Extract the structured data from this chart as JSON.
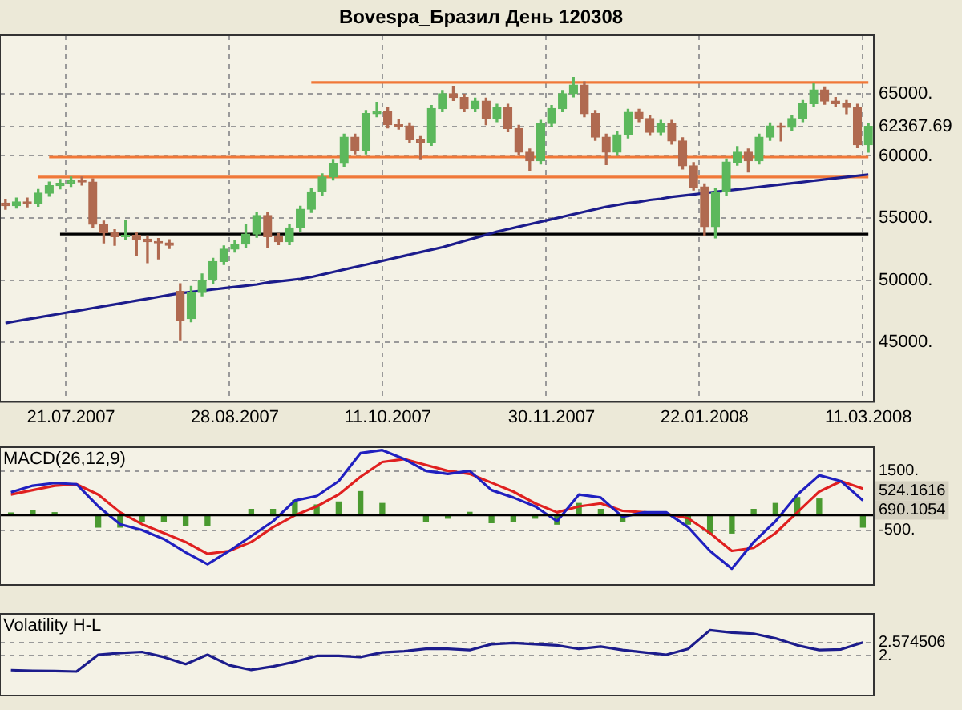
{
  "chart_data": [
    {
      "type": "candlestick",
      "title": "Bovespa_Бразил День 120308",
      "categories": [
        null,
        null,
        null,
        null,
        null,
        null,
        "21.07.2007",
        null,
        null,
        null,
        null,
        null,
        null,
        null,
        null,
        null,
        null,
        null,
        null,
        null,
        null,
        "28.08.2007",
        null,
        null,
        null,
        null,
        null,
        null,
        null,
        null,
        null,
        null,
        null,
        null,
        null,
        "11.10.2007",
        null,
        null,
        null,
        null,
        null,
        null,
        null,
        null,
        null,
        null,
        null,
        null,
        null,
        null,
        "30.11.2007",
        null,
        null,
        null,
        null,
        null,
        null,
        null,
        null,
        null,
        null,
        null,
        null,
        null,
        "22.01.2008",
        null,
        null,
        null,
        null,
        null,
        null,
        null,
        null,
        null,
        null,
        null,
        null,
        null,
        null,
        "11.03.2008"
      ],
      "ohlc": [
        [
          56200,
          56500,
          55700,
          56000
        ],
        [
          56000,
          56600,
          55800,
          56300
        ],
        [
          56300,
          56600,
          55900,
          56200
        ],
        [
          56200,
          57300,
          55950,
          57000
        ],
        [
          57000,
          57900,
          56750,
          57600
        ],
        [
          57600,
          58100,
          57350,
          57800
        ],
        [
          57800,
          58300,
          57550,
          58000
        ],
        [
          58000,
          58300,
          57650,
          57900
        ],
        [
          57900,
          58150,
          54250,
          54500
        ],
        [
          54500,
          54750,
          53000,
          53800
        ],
        [
          53800,
          54050,
          52800,
          53500
        ],
        [
          53500,
          54800,
          53250,
          53600
        ],
        [
          53600,
          53850,
          52000,
          53300
        ],
        [
          53300,
          53550,
          51400,
          53100
        ],
        [
          53100,
          53350,
          51700,
          53000
        ],
        [
          53000,
          53250,
          52550,
          52800
        ],
        [
          49100,
          49700,
          45200,
          46800
        ],
        [
          46900,
          49500,
          46650,
          49000
        ],
        [
          49000,
          50500,
          48750,
          50000
        ],
        [
          50000,
          51750,
          49750,
          51500
        ],
        [
          51500,
          52750,
          51250,
          52500
        ],
        [
          52500,
          53150,
          52250,
          52900
        ],
        [
          52900,
          54500,
          52650,
          53700
        ],
        [
          53700,
          55450,
          53450,
          55200
        ],
        [
          55200,
          55450,
          52600,
          53500
        ],
        [
          53500,
          53750,
          52850,
          53100
        ],
        [
          53100,
          54450,
          52850,
          54200
        ],
        [
          54200,
          55950,
          53950,
          55700
        ],
        [
          55700,
          57350,
          55450,
          57100
        ],
        [
          57100,
          58550,
          56850,
          58300
        ],
        [
          58300,
          59650,
          58050,
          59400
        ],
        [
          59400,
          61750,
          59150,
          61500
        ],
        [
          61500,
          61750,
          60150,
          60400
        ],
        [
          60400,
          63650,
          60150,
          63400
        ],
        [
          63400,
          64300,
          63150,
          63600
        ],
        [
          63600,
          63850,
          62250,
          62500
        ],
        [
          62500,
          62900,
          62150,
          62400
        ],
        [
          62400,
          62650,
          61050,
          61300
        ],
        [
          61300,
          61550,
          59700,
          61100
        ],
        [
          61100,
          64050,
          60850,
          63800
        ],
        [
          63800,
          65250,
          63550,
          65000
        ],
        [
          65000,
          65600,
          64450,
          64700
        ],
        [
          64700,
          64950,
          63550,
          63800
        ],
        [
          63800,
          64650,
          63550,
          64400
        ],
        [
          64400,
          64650,
          62500,
          63000
        ],
        [
          63000,
          64150,
          62750,
          63900
        ],
        [
          63900,
          64150,
          61950,
          62200
        ],
        [
          62200,
          62450,
          60050,
          60300
        ],
        [
          60300,
          60550,
          58800,
          59600
        ],
        [
          59600,
          62850,
          59350,
          62600
        ],
        [
          62600,
          64050,
          62350,
          63800
        ],
        [
          63800,
          65250,
          63550,
          65000
        ],
        [
          65000,
          66300,
          64750,
          65700
        ],
        [
          65700,
          65950,
          63150,
          63400
        ],
        [
          63400,
          63650,
          61250,
          61500
        ],
        [
          61500,
          61750,
          59300,
          60300
        ],
        [
          60300,
          61950,
          60050,
          61700
        ],
        [
          61700,
          63750,
          61450,
          63500
        ],
        [
          63500,
          63750,
          62750,
          63000
        ],
        [
          63000,
          63250,
          61650,
          61900
        ],
        [
          61900,
          62850,
          61650,
          62600
        ],
        [
          62600,
          62850,
          60950,
          61200
        ],
        [
          61200,
          61450,
          58950,
          59200
        ],
        [
          59200,
          59450,
          57250,
          57500
        ],
        [
          57500,
          57750,
          53600,
          54300
        ],
        [
          54300,
          57350,
          53400,
          57100
        ],
        [
          57100,
          59750,
          56850,
          59500
        ],
        [
          59500,
          60750,
          59250,
          60300
        ],
        [
          60300,
          60550,
          58700,
          59600
        ],
        [
          59600,
          61750,
          59350,
          61500
        ],
        [
          61500,
          62650,
          61250,
          62400
        ],
        [
          62400,
          62650,
          61200,
          62300
        ],
        [
          62300,
          63250,
          62050,
          63000
        ],
        [
          63000,
          64450,
          62750,
          64200
        ],
        [
          64200,
          65800,
          63950,
          65300
        ],
        [
          65300,
          65550,
          64150,
          64400
        ],
        [
          64400,
          64700,
          63950,
          64200
        ],
        [
          64200,
          64450,
          63400,
          63900
        ],
        [
          63900,
          64150,
          60650,
          60900
        ],
        [
          60900,
          62600,
          60300,
          62367.69
        ]
      ],
      "colors": [
        "#b06a50",
        "#5cb85c",
        "#b06a50",
        "#5cb85c",
        "#5cb85c",
        "#5cb85c",
        "#5cb85c",
        "#b06a50",
        "#b06a50",
        "#b06a50",
        "#b06a50",
        "#5cb85c",
        "#b06a50",
        "#b06a50",
        "#b06a50",
        "#b06a50",
        "#b06a50",
        "#5cb85c",
        "#5cb85c",
        "#5cb85c",
        "#5cb85c",
        "#5cb85c",
        "#5cb85c",
        "#5cb85c",
        "#b06a50",
        "#b06a50",
        "#5cb85c",
        "#5cb85c",
        "#5cb85c",
        "#5cb85c",
        "#5cb85c",
        "#5cb85c",
        "#b06a50",
        "#5cb85c",
        "#5cb85c",
        "#b06a50",
        "#b06a50",
        "#b06a50",
        "#b06a50",
        "#5cb85c",
        "#5cb85c",
        "#b06a50",
        "#b06a50",
        "#5cb85c",
        "#b06a50",
        "#5cb85c",
        "#b06a50",
        "#b06a50",
        "#b06a50",
        "#5cb85c",
        "#5cb85c",
        "#5cb85c",
        "#5cb85c",
        "#b06a50",
        "#b06a50",
        "#b06a50",
        "#5cb85c",
        "#5cb85c",
        "#b06a50",
        "#b06a50",
        "#5cb85c",
        "#b06a50",
        "#b06a50",
        "#b06a50",
        "#b06a50",
        "#5cb85c",
        "#5cb85c",
        "#5cb85c",
        "#b06a50",
        "#5cb85c",
        "#5cb85c",
        "#b06a50",
        "#5cb85c",
        "#5cb85c",
        "#5cb85c",
        "#b06a50",
        "#b06a50",
        "#b06a50",
        "#b06a50",
        "#5cb85c"
      ],
      "series": [
        {
          "type": "line",
          "color": "#1c1c8c",
          "values": [
            46550,
            46700,
            46850,
            47000,
            47150,
            47300,
            47450,
            47600,
            47750,
            47900,
            48050,
            48200,
            48350,
            48500,
            48650,
            48800,
            48950,
            49050,
            49150,
            49250,
            49350,
            49450,
            49550,
            49650,
            49800,
            49900,
            50000,
            50100,
            50250,
            50450,
            50650,
            50850,
            51050,
            51250,
            51450,
            51650,
            51850,
            52050,
            52250,
            52450,
            52650,
            52900,
            53150,
            53400,
            53650,
            53900,
            54100,
            54300,
            54500,
            54700,
            54900,
            55100,
            55300,
            55500,
            55700,
            55900,
            56050,
            56200,
            56300,
            56450,
            56550,
            56700,
            56800,
            56900,
            57000,
            57100,
            57200,
            57300,
            57400,
            57500,
            57600,
            57700,
            57800,
            57900,
            58000,
            58100,
            58200,
            58300,
            58400,
            58500
          ]
        },
        {
          "type": "line",
          "color": "#f07838",
          "values": [
            null,
            null,
            null,
            null,
            null,
            null,
            null,
            null,
            null,
            null,
            null,
            null,
            null,
            null,
            null,
            null,
            null,
            null,
            null,
            null,
            null,
            null,
            null,
            null,
            null,
            null,
            null,
            null,
            65900,
            65900,
            65900,
            65900,
            65900,
            65900,
            65900,
            65900,
            65900,
            65900,
            65900,
            65900,
            65900,
            65900,
            65900,
            65900,
            65900,
            65900,
            65900,
            65900,
            65900,
            65900,
            65900,
            65900,
            65900,
            65900,
            65900,
            65900,
            65900,
            65900,
            65900,
            65900,
            65900,
            65900,
            65900,
            65900,
            65900,
            65900,
            65900,
            65900,
            65900,
            65900,
            65900,
            65900,
            65900,
            65900,
            65900,
            65900,
            65900,
            65900,
            65900,
            65900
          ]
        },
        {
          "type": "line",
          "color": "#f07838",
          "values": [
            null,
            null,
            null,
            null,
            59900,
            59900,
            59900,
            59900,
            59900,
            59900,
            59900,
            59900,
            59900,
            59900,
            59900,
            59900,
            59900,
            59900,
            59900,
            59900,
            59900,
            59900,
            59900,
            59900,
            59900,
            59900,
            59900,
            59900,
            59900,
            59900,
            59900,
            59900,
            59900,
            59900,
            59900,
            59900,
            59900,
            59900,
            59900,
            59900,
            59900,
            59900,
            59900,
            59900,
            59900,
            59900,
            59900,
            59900,
            59900,
            59900,
            59900,
            59900,
            59900,
            59900,
            59900,
            59900,
            59900,
            59900,
            59900,
            59900,
            59900,
            59900,
            59900,
            59900,
            59900,
            59900,
            59900,
            59900,
            59900,
            59900,
            59900,
            59900,
            59900,
            59900,
            59900,
            59900,
            59900,
            59900,
            59900,
            59900
          ]
        },
        {
          "type": "line",
          "color": "#f07838",
          "values": [
            null,
            null,
            null,
            58300,
            58300,
            58300,
            58300,
            58300,
            58300,
            58300,
            58300,
            58300,
            58300,
            58300,
            58300,
            58300,
            58300,
            58300,
            58300,
            58300,
            58300,
            58300,
            58300,
            58300,
            58300,
            58300,
            58300,
            58300,
            58300,
            58300,
            58300,
            58300,
            58300,
            58300,
            58300,
            58300,
            58300,
            58300,
            58300,
            58300,
            58300,
            58300,
            58300,
            58300,
            58300,
            58300,
            58300,
            58300,
            58300,
            58300,
            58300,
            58300,
            58300,
            58300,
            58300,
            58300,
            58300,
            58300,
            58300,
            58300,
            58300,
            58300,
            58300,
            58300,
            58300,
            58300,
            58300,
            58300,
            58300,
            58300,
            58300,
            58300,
            58300,
            58300,
            58300,
            58300,
            58300,
            58300,
            58300,
            58300
          ]
        },
        {
          "type": "line",
          "color": "#000000",
          "values": [
            null,
            null,
            null,
            null,
            null,
            53700,
            53700,
            53700,
            53700,
            53700,
            53700,
            53700,
            53700,
            53700,
            53700,
            53700,
            53700,
            53700,
            53700,
            53700,
            53700,
            53700,
            53700,
            53700,
            53700,
            53700,
            53700,
            53700,
            53700,
            53700,
            53700,
            53700,
            53700,
            53700,
            53700,
            53700,
            53700,
            53700,
            53700,
            53700,
            53700,
            53700,
            53700,
            53700,
            53700,
            53700,
            53700,
            53700,
            53700,
            53700,
            53700,
            53700,
            53700,
            53700,
            53700,
            53700,
            53700,
            53700,
            53700,
            53700,
            53700,
            53700,
            53700,
            53700,
            53700,
            53700,
            53700,
            53700,
            53700,
            53700,
            53700,
            53700,
            53700,
            53700,
            53700,
            53700,
            53700,
            53700,
            53700,
            53700
          ]
        }
      ],
      "ylim": [
        40200,
        69700
      ],
      "yticks": [
        {
          "value": 45000,
          "label": "45000."
        },
        {
          "value": 50000,
          "label": "50000."
        },
        {
          "value": 55000,
          "label": "55000."
        },
        {
          "value": 60000,
          "label": "60000."
        },
        {
          "value": 62367.69,
          "label": "62367.69"
        },
        {
          "value": 65000,
          "label": "65000."
        }
      ],
      "grid": true
    },
    {
      "type": "line",
      "title": "MACD(26,12,9)",
      "categories": [
        null,
        null,
        null,
        null,
        null,
        null,
        null,
        null,
        null,
        null,
        null,
        null,
        null,
        null,
        null,
        null,
        null,
        null,
        null,
        null,
        null,
        null,
        null,
        null,
        null,
        null,
        null,
        null,
        null,
        null,
        null,
        null,
        null,
        null,
        null,
        null,
        null,
        null,
        null,
        null
      ],
      "series": [
        {
          "type": "bar",
          "color": "#4a9a30",
          "values": [
            80,
            150,
            90,
            0,
            -400,
            -400,
            -200,
            -200,
            -350,
            -350,
            0,
            200,
            200,
            500,
            350,
            450,
            800,
            400,
            0,
            -200,
            -100,
            100,
            -250,
            -200,
            -100,
            -300,
            400,
            200,
            -200,
            0,
            null,
            -300,
            -600,
            -600,
            200,
            400,
            600,
            550,
            0,
            -400
          ]
        },
        {
          "type": "line",
          "color": "#2020c0",
          "values": [
            780,
            1000,
            1090,
            1050,
            300,
            -300,
            -500,
            -800,
            -1250,
            -1650,
            -1200,
            -700,
            -200,
            500,
            650,
            1150,
            2100,
            2200,
            1900,
            1500,
            1400,
            1500,
            850,
            600,
            300,
            -200,
            700,
            600,
            -50,
            100,
            100,
            -400,
            -1200,
            -1800,
            -900,
            -200,
            700,
            1350,
            1150,
            500
          ]
        },
        {
          "type": "line",
          "color": "#e02020",
          "values": [
            700,
            850,
            1000,
            1050,
            700,
            100,
            -300,
            -600,
            -900,
            -1300,
            -1200,
            -900,
            -400,
            0,
            300,
            700,
            1300,
            1800,
            1900,
            1700,
            1500,
            1400,
            1100,
            800,
            400,
            100,
            300,
            400,
            150,
            100,
            50,
            -100,
            -600,
            -1200,
            -1100,
            -600,
            100,
            800,
            1150,
            900
          ]
        }
      ],
      "ylim": [
        -2350,
        2300
      ],
      "yticks": [
        {
          "value": -500,
          "label": "-500."
        },
        {
          "value": 1500,
          "label": "1500."
        }
      ],
      "grid": "y",
      "tick_labels": "y",
      "ref_lines": [
        {
          "axis": "y",
          "value": 0,
          "color": "#000000"
        }
      ],
      "annotations": [
        "690.1054",
        "524.1616"
      ]
    },
    {
      "type": "line",
      "title": "Volatility H-L",
      "categories": [
        null,
        null,
        null,
        null,
        null,
        null,
        null,
        null,
        null,
        null,
        null,
        null,
        null,
        null,
        null,
        null,
        null,
        null,
        null,
        null,
        null,
        null,
        null,
        null,
        null,
        null,
        null,
        null,
        null,
        null,
        null,
        null,
        null,
        null,
        null,
        null,
        null,
        null,
        null,
        null
      ],
      "series": [
        {
          "type": "line",
          "color": "#1c1c8c",
          "values": [
            1.39,
            1.36,
            1.35,
            1.33,
            2.05,
            2.12,
            2.17,
            1.95,
            1.65,
            2.05,
            1.6,
            1.4,
            1.55,
            1.75,
            2.0,
            2.0,
            1.95,
            2.15,
            2.2,
            2.3,
            2.3,
            2.25,
            2.5,
            2.55,
            2.5,
            2.45,
            2.3,
            2.4,
            2.25,
            2.15,
            2.05,
            2.3,
            3.1,
            3.0,
            2.95,
            2.75,
            2.45,
            2.25,
            2.28,
            2.57
          ]
        }
      ],
      "ylim": [
        0.3,
        3.8
      ],
      "yticks": [
        {
          "value": 2,
          "label": "2."
        },
        {
          "value": 2.574506,
          "label": "2.574506"
        }
      ],
      "grid": "y",
      "tick_labels": "y"
    }
  ]
}
